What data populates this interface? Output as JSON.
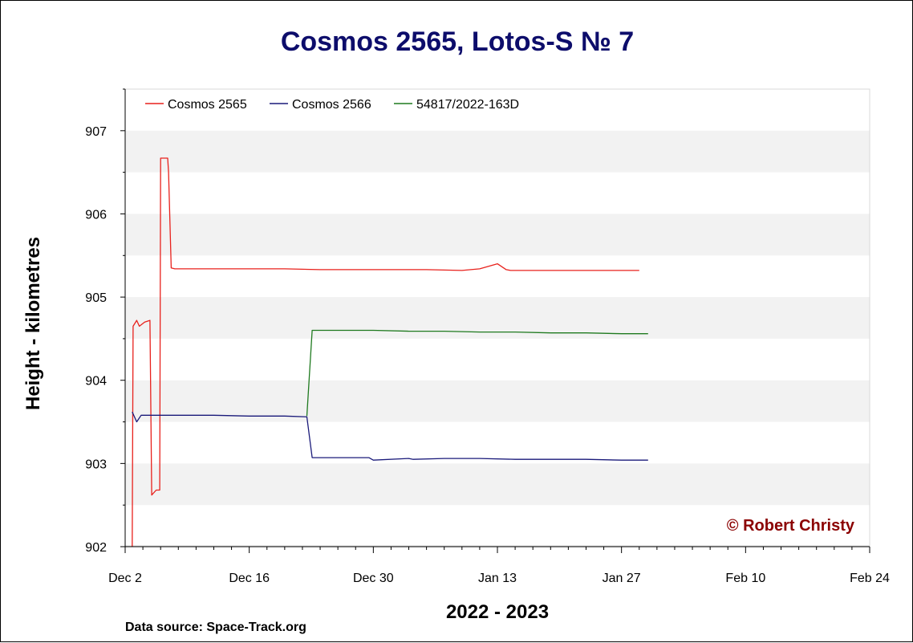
{
  "chart_data": {
    "type": "line",
    "title": "Cosmos 2565, Lotos-S № 7",
    "xlabel": "2022 - 2023",
    "ylabel": "Height - kilometres",
    "x_tick_labels": [
      "Dec 2",
      "Dec 16",
      "Dec 30",
      "Jan 13",
      "Jan 27",
      "Feb 10",
      "Feb 24"
    ],
    "xlim": [
      0,
      84
    ],
    "y_tick_labels": [
      "902",
      "903",
      "904",
      "905",
      "906",
      "907"
    ],
    "ylim": [
      902,
      907.5
    ],
    "grid": "alternating horizontal bands",
    "legend_position": "top-left",
    "series": [
      {
        "name": "Cosmos 2565",
        "color": "#e8211c",
        "x": [
          0.8,
          0.9,
          1.3,
          1.6,
          2.2,
          2.8,
          3.0,
          3.5,
          3.9,
          4.0,
          4.8,
          4.9,
          5.2,
          5.6,
          6.2,
          7,
          10,
          14,
          18,
          22,
          26,
          30,
          34,
          38,
          40,
          42,
          43,
          43.5,
          46,
          50,
          54,
          58
        ],
        "y": [
          902.0,
          904.65,
          904.72,
          904.65,
          904.7,
          904.72,
          902.62,
          902.68,
          902.68,
          906.67,
          906.67,
          906.5,
          905.35,
          905.34,
          905.34,
          905.34,
          905.34,
          905.34,
          905.34,
          905.33,
          905.33,
          905.33,
          905.33,
          905.32,
          905.34,
          905.4,
          905.33,
          905.32,
          905.32,
          905.32,
          905.32,
          905.32
        ]
      },
      {
        "name": "Cosmos 2566",
        "color": "#1a1a7a",
        "x": [
          0.8,
          1.3,
          1.8,
          2.8,
          3.5,
          6,
          10,
          14,
          18,
          20.5,
          21.1,
          24,
          27.5,
          28,
          32,
          32.5,
          36,
          40,
          44,
          48,
          52,
          56,
          59
        ],
        "y": [
          903.62,
          903.5,
          903.58,
          903.58,
          903.58,
          903.58,
          903.58,
          903.57,
          903.57,
          903.56,
          903.07,
          903.07,
          903.07,
          903.04,
          903.06,
          903.05,
          903.06,
          903.06,
          903.05,
          903.05,
          903.05,
          903.04,
          903.04
        ]
      },
      {
        "name": "54817/2022-163D",
        "color": "#1f7a1f",
        "x": [
          20.5,
          21.1,
          24,
          28,
          32,
          36,
          40,
          44,
          48,
          52,
          56,
          59
        ],
        "y": [
          903.57,
          904.6,
          904.6,
          904.6,
          904.59,
          904.59,
          904.58,
          904.58,
          904.57,
          904.57,
          904.56,
          904.56
        ]
      }
    ]
  },
  "credit": "© Robert Christy",
  "data_source": "Data source: Space-Track.org",
  "colors": {
    "title": "#0d0d6b",
    "credit": "#8b0000",
    "band": "#f2f2f2"
  }
}
